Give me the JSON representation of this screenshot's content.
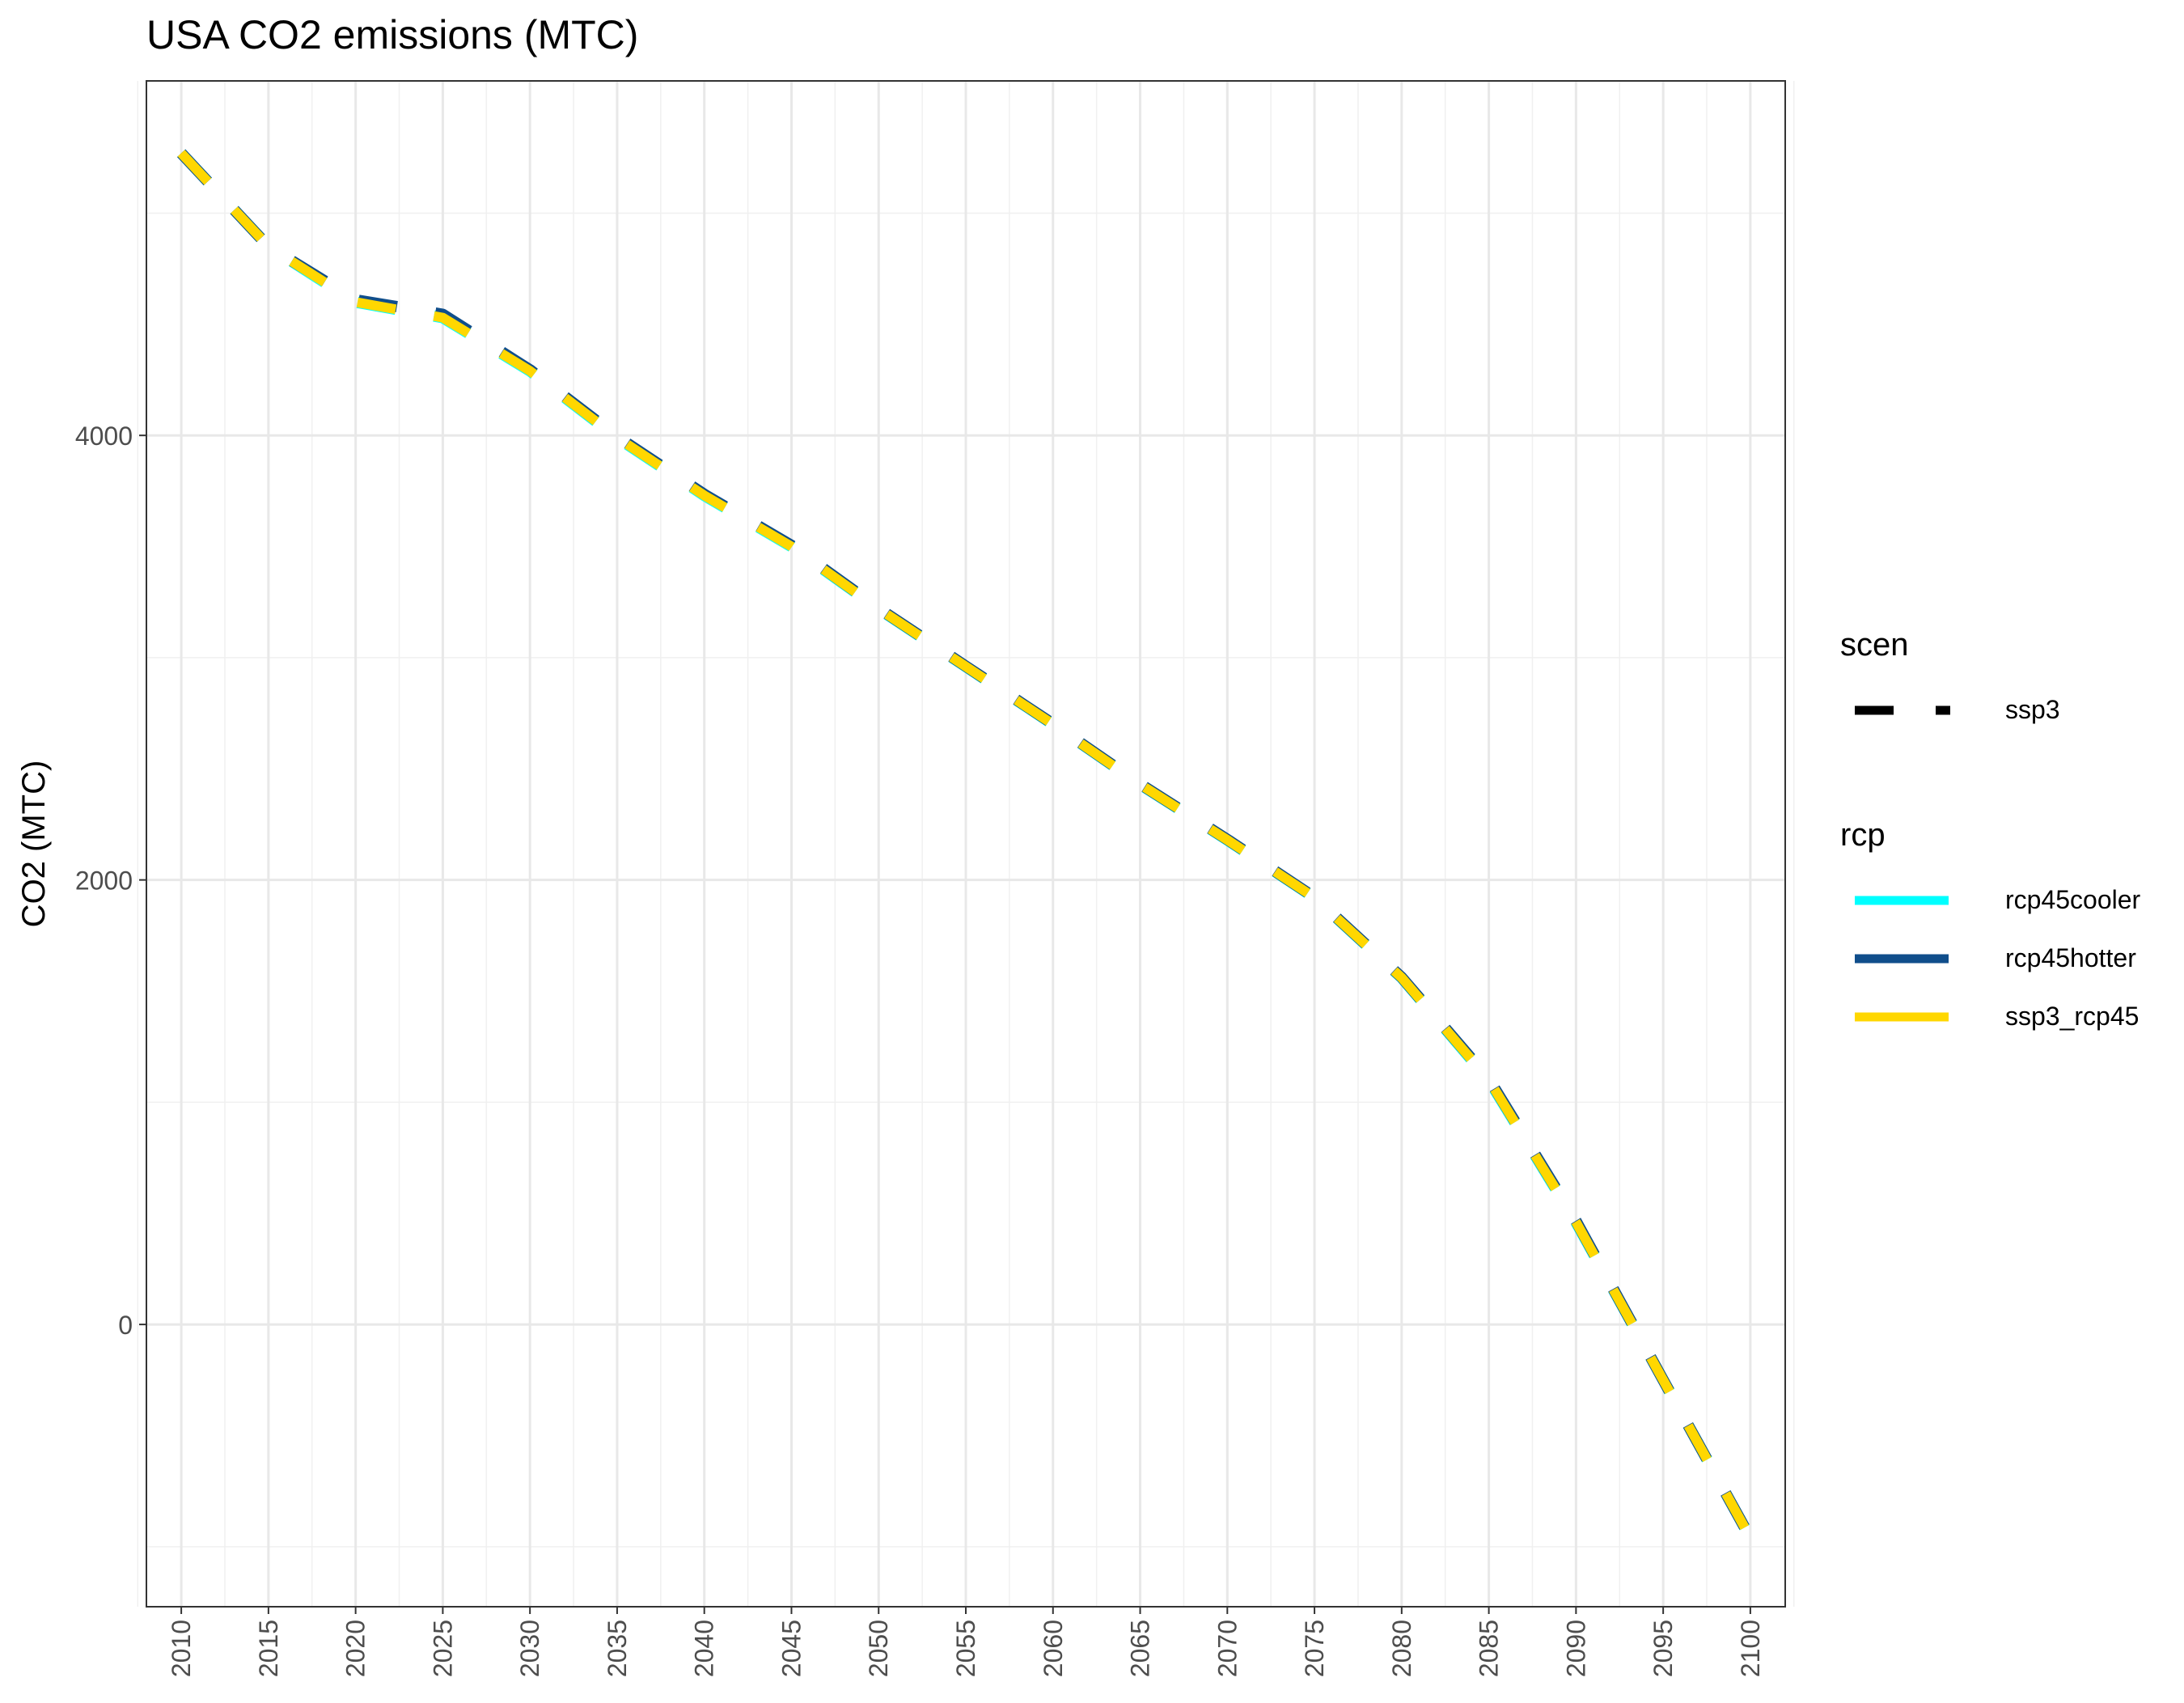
{
  "chart_data": {
    "type": "line",
    "title": "USA CO2 emissions (MTC)",
    "xlabel": "",
    "ylabel": "CO2 (MTC)",
    "xlim": [
      2008,
      2102
    ],
    "ylim": [
      -1270,
      5595
    ],
    "x_ticks": [
      2010,
      2015,
      2020,
      2025,
      2030,
      2035,
      2040,
      2045,
      2050,
      2055,
      2060,
      2065,
      2070,
      2075,
      2080,
      2085,
      2090,
      2095,
      2100
    ],
    "y_ticks": [
      0,
      2000,
      4000
    ],
    "y_minor_ticks": [
      -1000,
      1000,
      3000,
      5000
    ],
    "grid": true,
    "legend_position": "right",
    "legends": [
      {
        "title": "scen",
        "type": "linetype",
        "entries": [
          {
            "label": "ssp3",
            "color": "#000000",
            "dashed": true
          }
        ]
      },
      {
        "title": "rcp",
        "type": "color",
        "entries": [
          {
            "label": "rcp45cooler",
            "color": "#00FFFF"
          },
          {
            "label": "rcp45hotter",
            "color": "#104E8B"
          },
          {
            "label": "ssp3_rcp45",
            "color": "#FFD700"
          }
        ]
      }
    ],
    "x": [
      2010,
      2015,
      2020,
      2025,
      2030,
      2035,
      2040,
      2045,
      2050,
      2055,
      2060,
      2065,
      2070,
      2075,
      2080,
      2085,
      2090,
      2095,
      2100
    ],
    "series": [
      {
        "name": "rcp45cooler",
        "color": "#00FFFF",
        "dashed": true,
        "values": [
          5270,
          4850,
          4600,
          4530,
          4290,
          3990,
          3730,
          3500,
          3220,
          2960,
          2700,
          2430,
          2180,
          1920,
          1560,
          1100,
          460,
          -250,
          -960
        ]
      },
      {
        "name": "rcp45hotter",
        "color": "#104E8B",
        "dashed": true,
        "values": [
          5270,
          4850,
          4610,
          4545,
          4295,
          3995,
          3735,
          3505,
          3222,
          2962,
          2702,
          2432,
          2182,
          1922,
          1562,
          1105,
          465,
          -250,
          -960
        ]
      },
      {
        "name": "ssp3_rcp45",
        "color": "#FFD700",
        "dashed": true,
        "values": [
          5270,
          4850,
          4600,
          4530,
          4290,
          3990,
          3730,
          3500,
          3220,
          2960,
          2700,
          2430,
          2180,
          1920,
          1560,
          1100,
          460,
          -250,
          -960
        ]
      }
    ]
  }
}
